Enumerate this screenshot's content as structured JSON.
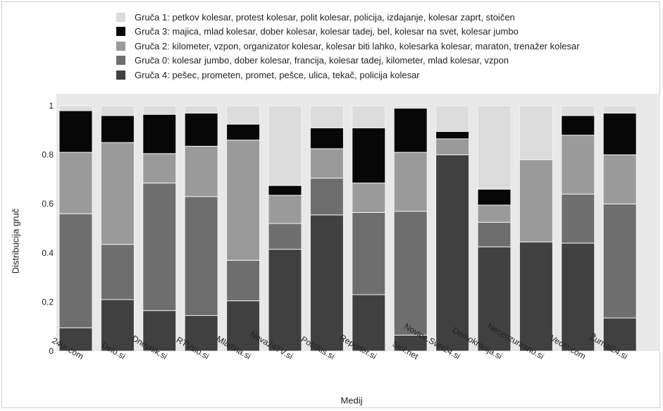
{
  "chart_data": {
    "type": "bar",
    "stacked": true,
    "xlabel": "Medij",
    "ylabel": "Distribucija gruč",
    "ylim": [
      0,
      1.08
    ],
    "yticks": [
      "0",
      "0.2",
      "0.4",
      "0.6",
      "0.8",
      "1"
    ],
    "grid": false,
    "legend_position": "top",
    "categories": [
      "24ur.com",
      "Delo.si",
      "Dnevnik.si",
      "RTVslo.si",
      "Mladina.si",
      "Nova24TV.si",
      "Politikis.si",
      "Reporter.si",
      "Siol.net",
      "Novice.Svet24.si",
      "Demokracija.si",
      "Necenzurirano.si",
      "Vecer.com",
      "Žurnal24.si"
    ],
    "series": [
      {
        "name": "Gruča 4: pešec, prometen, promet, pešce, ulica, tekač, policija kolesar",
        "color": "#404040",
        "values": [
          0.095,
          0.21,
          0.165,
          0.145,
          0.205,
          0.415,
          0.555,
          0.23,
          0.065,
          0.8,
          0.425,
          0.445,
          0.44,
          0.135
        ]
      },
      {
        "name": "Gruča 0: kolesar jumbo, dober kolesar, francija, kolesar tadej, kilometer, mlad kolesar, vzpon",
        "color": "#6e6e6e",
        "values": [
          0.465,
          0.225,
          0.52,
          0.485,
          0.165,
          0.105,
          0.15,
          0.335,
          0.505,
          0.0,
          0.1,
          0.0,
          0.2,
          0.465
        ]
      },
      {
        "name": "Gruča 2: kilometer, vzpon, organizator kolesar, kolesar biti lahko, kolesarka kolesar, maraton, trenažer kolesar",
        "color": "#9a9a9a",
        "values": [
          0.25,
          0.415,
          0.12,
          0.205,
          0.49,
          0.115,
          0.12,
          0.12,
          0.24,
          0.065,
          0.07,
          0.335,
          0.24,
          0.2
        ]
      },
      {
        "name": "Gruča 3: majica, mlad kolesar, dober kolesar, kolesar tadej, bel, kolesar na svet, kolesar jumbo",
        "color": "#070707",
        "values": [
          0.17,
          0.11,
          0.16,
          0.135,
          0.065,
          0.04,
          0.085,
          0.225,
          0.18,
          0.03,
          0.065,
          0.0,
          0.08,
          0.17
        ]
      },
      {
        "name": "Gruča 1: petkov kolesar, protest kolesar, polit kolesar, policija, izdajanje, kolesar zaprt, stoičen",
        "color": "#dcdcdc",
        "values": [
          0.02,
          0.04,
          0.035,
          0.03,
          0.075,
          0.325,
          0.09,
          0.09,
          0.01,
          0.105,
          0.34,
          0.22,
          0.04,
          0.03
        ]
      }
    ],
    "legend_order": [
      4,
      3,
      2,
      1,
      0
    ]
  }
}
